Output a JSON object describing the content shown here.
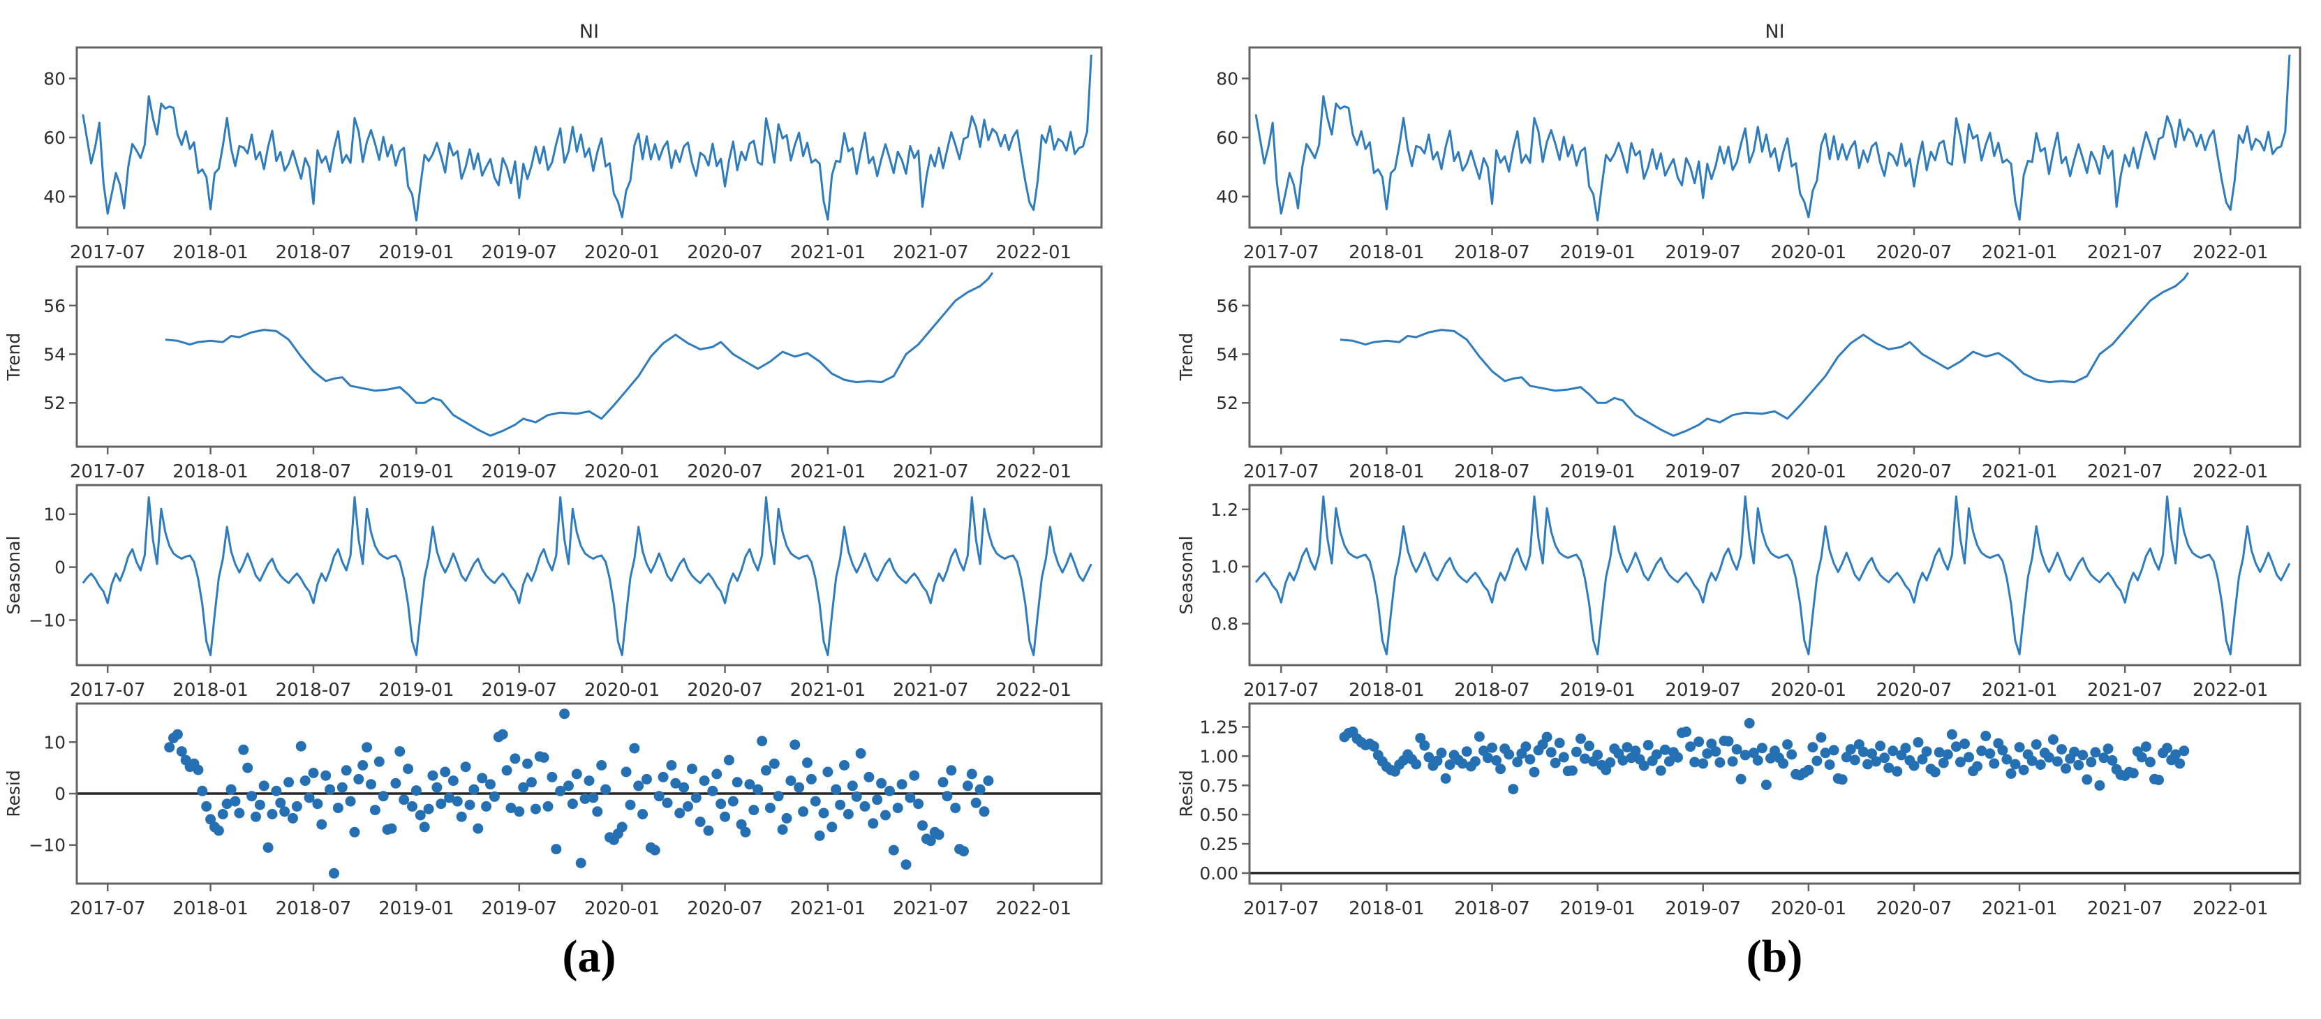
{
  "figure": {
    "background": "#ffffff",
    "line_color": "#2e7bbd",
    "marker_color": "#2470b3",
    "spine_color": "#636363",
    "zero_line_color": "#262626",
    "text_color": "#2e2e2e"
  },
  "captions": {
    "a": "(a)",
    "b": "(b)"
  },
  "axes": {
    "xlim": [
      2017.35,
      2022.33
    ],
    "xticks": [
      [
        2017.5,
        "2017-07"
      ],
      [
        2018.0,
        "2018-01"
      ],
      [
        2018.5,
        "2018-07"
      ],
      [
        2019.0,
        "2019-01"
      ],
      [
        2019.5,
        "2019-07"
      ],
      [
        2020.0,
        "2020-01"
      ],
      [
        2020.5,
        "2020-07"
      ],
      [
        2021.0,
        "2021-01"
      ],
      [
        2021.5,
        "2021-07"
      ],
      [
        2022.0,
        "2022-01"
      ]
    ]
  },
  "series_store": {
    "observed": {
      "x0": 2017.38,
      "dx": 0.02,
      "values": [
        67.8,
        59.5,
        51.2,
        57.0,
        65.0,
        44.5,
        34.2,
        41.0,
        48.0,
        44.0,
        36.0,
        50.0,
        57.8,
        55.6,
        53.0,
        57.5,
        74.0,
        66.5,
        61.0,
        71.5,
        69.8,
        70.5,
        70.0,
        61.0,
        57.5,
        62.1,
        56.1,
        58.4,
        48.0,
        49.2,
        46.6,
        35.7,
        47.9,
        49.4,
        57.2,
        66.6,
        56.3,
        50.3,
        57.1,
        56.6,
        54.6,
        61.0,
        52.6,
        55.1,
        49.3,
        56.9,
        62.3,
        52.0,
        55.1,
        48.8,
        51.1,
        55.5,
        50.6,
        46.0,
        53.0,
        49.9,
        37.5,
        55.7,
        51.5,
        53.6,
        48.4,
        56.3,
        62.1,
        51.4,
        54.1,
        51.4,
        66.6,
        62.0,
        51.7,
        58.5,
        62.5,
        57.8,
        52.4,
        60.2,
        53.6,
        57.5,
        50.5,
        55.3,
        56.5,
        43.4,
        40.7,
        31.9,
        43.7,
        54.1,
        52.0,
        54.4,
        58.2,
        53.7,
        48.1,
        58.1,
        53.9,
        55.4,
        46.0,
        50.0,
        56.0,
        49.3,
        54.6,
        47.1,
        50.1,
        52.7,
        46.4,
        43.8,
        53.0,
        49.9,
        44.5,
        51.9,
        39.5,
        51.1,
        45.9,
        50.5,
        56.9,
        51.2,
        56.9,
        49.0,
        51.6,
        57.8,
        63.1,
        51.5,
        55.3,
        63.6,
        55.2,
        61.0,
        53.4,
        56.3,
        48.7,
        55.1,
        59.7,
        50.2,
        51.3,
        41.0,
        38.2,
        33.0,
        42.0,
        45.4,
        57.4,
        61.3,
        52.7,
        60.4,
        52.6,
        57.7,
        52.5,
        56.5,
        58.7,
        49.7,
        55.6,
        51.7,
        56.9,
        58.3,
        51.4,
        47.0,
        54.8,
        53.7,
        50.5,
        57.9,
        50.3,
        52.8,
        43.4,
        52.2,
        58.6,
        48.9,
        55.2,
        52.3,
        57.9,
        58.9,
        51.6,
        50.8,
        66.5,
        60.1,
        51.5,
        64.5,
        59.7,
        60.8,
        52.2,
        57.6,
        61.6,
        53.7,
        58.2,
        51.5,
        52.5,
        51.1,
        38.4,
        32.2,
        47.2,
        52.1,
        51.7,
        61.5,
        55.3,
        56.4,
        47.6,
        55.2,
        61.6,
        51.3,
        53.4,
        46.9,
        52.7,
        57.7,
        53.0,
        48.0,
        55.2,
        52.3,
        47.7,
        57.1,
        53.0,
        55.5,
        36.5,
        47.0,
        54.1,
        50.2,
        56.5,
        49.6,
        55.8,
        61.8,
        57.5,
        52.7,
        59.5,
        60.2,
        67.2,
        63.5,
        56.8,
        66.0,
        59.1,
        62.9,
        61.5,
        57.0,
        60.9,
        55.8,
        60.2,
        62.4,
        53.5,
        45.1,
        38.0,
        35.5,
        45.4,
        60.8,
        58.2,
        63.8,
        55.9,
        59.5,
        58.5,
        55.6,
        61.9,
        54.4,
        56.4,
        57.0,
        62.0,
        88.0
      ]
    },
    "trend": {
      "pairs": [
        [
          2017.78,
          54.6
        ],
        [
          2017.84,
          54.55
        ],
        [
          2017.9,
          54.4
        ],
        [
          2017.94,
          54.5
        ],
        [
          2018.0,
          54.55
        ],
        [
          2018.06,
          54.5
        ],
        [
          2018.1,
          54.75
        ],
        [
          2018.14,
          54.7
        ],
        [
          2018.2,
          54.9
        ],
        [
          2018.26,
          55.0
        ],
        [
          2018.32,
          54.95
        ],
        [
          2018.38,
          54.6
        ],
        [
          2018.44,
          53.9
        ],
        [
          2018.5,
          53.3
        ],
        [
          2018.56,
          52.9
        ],
        [
          2018.6,
          53.0
        ],
        [
          2018.64,
          53.05
        ],
        [
          2018.68,
          52.7
        ],
        [
          2018.74,
          52.6
        ],
        [
          2018.8,
          52.5
        ],
        [
          2018.86,
          52.55
        ],
        [
          2018.92,
          52.65
        ],
        [
          2018.96,
          52.35
        ],
        [
          2019.0,
          52.0
        ],
        [
          2019.04,
          52.0
        ],
        [
          2019.08,
          52.2
        ],
        [
          2019.12,
          52.1
        ],
        [
          2019.18,
          51.5
        ],
        [
          2019.24,
          51.2
        ],
        [
          2019.3,
          50.9
        ],
        [
          2019.36,
          50.65
        ],
        [
          2019.42,
          50.85
        ],
        [
          2019.48,
          51.1
        ],
        [
          2019.52,
          51.35
        ],
        [
          2019.58,
          51.2
        ],
        [
          2019.64,
          51.5
        ],
        [
          2019.7,
          51.6
        ],
        [
          2019.78,
          51.55
        ],
        [
          2019.84,
          51.65
        ],
        [
          2019.9,
          51.35
        ],
        [
          2019.96,
          51.9
        ],
        [
          2020.02,
          52.5
        ],
        [
          2020.08,
          53.1
        ],
        [
          2020.14,
          53.9
        ],
        [
          2020.2,
          54.45
        ],
        [
          2020.26,
          54.8
        ],
        [
          2020.32,
          54.45
        ],
        [
          2020.38,
          54.2
        ],
        [
          2020.44,
          54.3
        ],
        [
          2020.48,
          54.5
        ],
        [
          2020.54,
          54.0
        ],
        [
          2020.6,
          53.7
        ],
        [
          2020.66,
          53.4
        ],
        [
          2020.72,
          53.7
        ],
        [
          2020.78,
          54.1
        ],
        [
          2020.84,
          53.9
        ],
        [
          2020.9,
          54.05
        ],
        [
          2020.96,
          53.7
        ],
        [
          2021.02,
          53.2
        ],
        [
          2021.08,
          52.95
        ],
        [
          2021.14,
          52.85
        ],
        [
          2021.2,
          52.9
        ],
        [
          2021.26,
          52.85
        ],
        [
          2021.32,
          53.1
        ],
        [
          2021.38,
          54.0
        ],
        [
          2021.44,
          54.4
        ],
        [
          2021.5,
          55.0
        ],
        [
          2021.56,
          55.6
        ],
        [
          2021.62,
          56.2
        ],
        [
          2021.68,
          56.55
        ],
        [
          2021.74,
          56.8
        ],
        [
          2021.78,
          57.1
        ],
        [
          2021.8,
          57.35
        ]
      ]
    },
    "seasonal_add": {
      "x0": 2017.38,
      "dx": 0.02,
      "n": 246,
      "cycle": [
        -3.0,
        -2.0,
        -1.2,
        -2.2,
        -3.6,
        -4.6,
        -6.8,
        -3.2,
        -1.2,
        -2.6,
        -0.6,
        2.0,
        3.4,
        1.0,
        -0.6,
        2.2,
        13.2,
        5.2,
        0.6,
        11.0,
        6.6,
        4.0,
        2.6,
        2.0,
        1.6,
        2.0,
        2.2,
        1.0,
        -2.2,
        -7.0,
        -14.0,
        -16.6,
        -9.0,
        -2.0,
        1.6,
        7.6,
        3.0,
        0.6,
        -1.0,
        0.6,
        2.6,
        0.6,
        -1.6,
        -2.6,
        -1.0,
        0.6,
        1.6,
        -0.4,
        -1.6,
        -2.4
      ]
    },
    "seasonal_mult": {
      "x0": 2017.38,
      "dx": 0.02,
      "n": 246,
      "cycle": [
        0.945,
        0.963,
        0.978,
        0.959,
        0.933,
        0.915,
        0.874,
        0.941,
        0.978,
        0.952,
        0.989,
        1.037,
        1.063,
        1.019,
        0.989,
        1.041,
        1.245,
        1.096,
        1.011,
        1.204,
        1.122,
        1.074,
        1.048,
        1.037,
        1.03,
        1.037,
        1.041,
        1.019,
        0.959,
        0.87,
        0.741,
        0.693,
        0.833,
        0.963,
        1.03,
        1.141,
        1.056,
        1.011,
        0.981,
        1.011,
        1.048,
        1.011,
        0.97,
        0.952,
        0.981,
        1.011,
        1.03,
        0.993,
        0.97,
        0.956
      ]
    },
    "resid": {
      "x0": 2017.8,
      "dx": 0.02,
      "values": [
        9.0,
        10.8,
        11.5,
        8.2,
        6.5,
        5.2,
        5.8,
        4.6,
        0.5,
        -2.5,
        -5.0,
        -6.5,
        -7.2,
        -4.0,
        -2.0,
        0.8,
        -1.5,
        -3.8,
        8.5,
        5.0,
        -0.5,
        -4.5,
        -2.2,
        1.5,
        -10.5,
        -4.0,
        0.5,
        -1.8,
        -3.5,
        2.2,
        -4.8,
        -2.5,
        9.2,
        2.5,
        -0.8,
        4.0,
        -2.0,
        -6.0,
        3.5,
        0.8,
        -15.5,
        -2.8,
        1.2,
        4.5,
        -1.5,
        -7.5,
        2.8,
        5.5,
        9.0,
        1.8,
        -3.2,
        6.2,
        -0.5,
        -7.0,
        -6.8,
        2.0,
        8.2,
        -1.2,
        4.8,
        -2.5,
        0.6,
        -4.2,
        -6.5,
        -3.0,
        3.5,
        1.2,
        -2.0,
        4.2,
        -0.8,
        2.5,
        -1.5,
        -4.5,
        5.2,
        -2.2,
        0.8,
        -6.8,
        3.0,
        -2.5,
        1.8,
        -0.6,
        11.0,
        11.5,
        4.5,
        -2.8,
        6.8,
        -3.5,
        1.2,
        5.8,
        2.2,
        -3.0,
        7.2,
        7.0,
        -2.5,
        3.2,
        -10.8,
        0.5,
        15.5,
        1.5,
        -2.0,
        3.8,
        -13.5,
        -1.0,
        2.5,
        -0.8,
        -3.5,
        5.5,
        0.8,
        -8.5,
        -9.0,
        -7.8,
        -6.5,
        4.2,
        -2.2,
        8.8,
        1.5,
        -4.0,
        2.8,
        -10.5,
        -11.0,
        -0.5,
        3.2,
        -1.8,
        5.5,
        2.0,
        -3.8,
        1.2,
        -2.5,
        4.8,
        -0.8,
        -5.5,
        2.5,
        -7.2,
        0.5,
        3.8,
        -2.0,
        -4.5,
        6.5,
        -1.5,
        2.2,
        -6.0,
        -7.5,
        1.8,
        -3.2,
        0.8,
        10.2,
        4.5,
        -2.8,
        5.8,
        -0.5,
        -7.0,
        -4.8,
        2.5,
        9.5,
        1.2,
        -3.5,
        6.0,
        2.8,
        -1.5,
        -8.2,
        -3.8,
        4.2,
        -6.5,
        0.8,
        -2.2,
        5.5,
        -4.0,
        1.5,
        -0.6,
        7.8,
        -2.5,
        3.2,
        -5.8,
        -1.2,
        2.0,
        -4.2,
        0.5,
        -11.0,
        -2.8,
        1.8,
        -13.8,
        -0.8,
        3.5,
        -2.0,
        -6.2,
        -8.8,
        -9.2,
        -7.5,
        -8.0,
        2.2,
        -0.5,
        4.5,
        -2.8,
        -10.8,
        -11.2,
        1.5,
        3.8,
        -1.8,
        0.8,
        -3.5,
        2.5
      ]
    }
  },
  "chart_data": [
    {
      "id": "a",
      "model": "additive",
      "title": "NI",
      "panels": [
        {
          "name": "observed",
          "title": "NI",
          "ylabel": null,
          "ylim": [
            29.5,
            90.5
          ],
          "yticks": [
            [
              40,
              "40"
            ],
            [
              60,
              "60"
            ],
            [
              80,
              "80"
            ]
          ],
          "series": [
            {
              "type": "line",
              "ref": "observed"
            }
          ]
        },
        {
          "name": "trend",
          "ylabel": "Trend",
          "ylim": [
            50.2,
            57.6
          ],
          "yticks": [
            [
              52,
              "52"
            ],
            [
              54,
              "54"
            ],
            [
              56,
              "56"
            ]
          ],
          "series": [
            {
              "type": "line",
              "ref": "trend"
            }
          ]
        },
        {
          "name": "seasonal",
          "ylabel": "Seasonal",
          "ylim": [
            -18.5,
            15.5
          ],
          "yticks": [
            [
              -10,
              "−10"
            ],
            [
              0,
              "0"
            ],
            [
              10,
              "10"
            ]
          ],
          "series": [
            {
              "type": "line",
              "ref": "seasonal_add"
            }
          ]
        },
        {
          "name": "resid",
          "ylabel": "Resid",
          "ylim": [
            -17.5,
            17.5
          ],
          "yticks": [
            [
              -10,
              "−10"
            ],
            [
              0,
              "0"
            ],
            [
              10,
              "10"
            ]
          ],
          "zero_line": 0,
          "series": [
            {
              "type": "scatter",
              "ref": "resid"
            }
          ]
        }
      ]
    },
    {
      "id": "b",
      "model": "multiplicative",
      "title": "NI",
      "panels": [
        {
          "name": "observed",
          "title": "NI",
          "ylabel": null,
          "ylim": [
            29.5,
            90.5
          ],
          "yticks": [
            [
              40,
              "40"
            ],
            [
              60,
              "60"
            ],
            [
              80,
              "80"
            ]
          ],
          "series": [
            {
              "type": "line",
              "ref": "observed"
            }
          ]
        },
        {
          "name": "trend",
          "ylabel": "Trend",
          "ylim": [
            50.2,
            57.6
          ],
          "yticks": [
            [
              52,
              "52"
            ],
            [
              54,
              "54"
            ],
            [
              56,
              "56"
            ]
          ],
          "series": [
            {
              "type": "line",
              "ref": "trend"
            }
          ]
        },
        {
          "name": "seasonal",
          "ylabel": "Seasonal",
          "ylim": [
            0.655,
            1.285
          ],
          "yticks": [
            [
              0.8,
              "0.8"
            ],
            [
              1.0,
              "1.0"
            ],
            [
              1.2,
              "1.2"
            ]
          ],
          "series": [
            {
              "type": "line",
              "ref": "seasonal_mult"
            }
          ]
        },
        {
          "name": "resid",
          "ylabel": "Resid",
          "ylim": [
            -0.09,
            1.45
          ],
          "yticks": [
            [
              0.0,
              "0.00"
            ],
            [
              0.25,
              "0.25"
            ],
            [
              0.5,
              "0.50"
            ],
            [
              0.75,
              "0.75"
            ],
            [
              1.0,
              "1.00"
            ],
            [
              1.25,
              "1.25"
            ]
          ],
          "zero_line": 0,
          "series": [
            {
              "type": "scatter",
              "ref": "resid",
              "scale": 0.01818,
              "offset": 1
            }
          ]
        }
      ]
    }
  ]
}
